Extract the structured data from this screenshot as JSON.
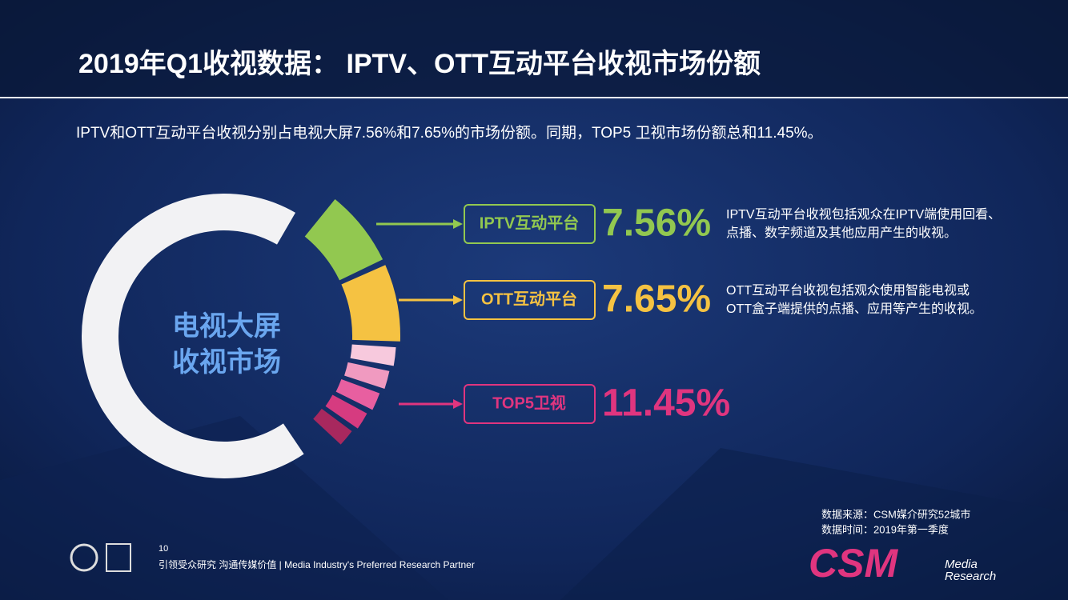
{
  "header": {
    "title": "2019年Q1收视数据： IPTV、OTT互动平台收视市场份额",
    "subtitle": "IPTV和OTT互动平台收视分别占电视大屏7.56%和7.65%的市场份额。同期，TOP5 卫视市场份额总和11.45%。"
  },
  "chart_data": {
    "type": "donut",
    "center_label": [
      "电视大屏",
      "收视市场"
    ],
    "categories": [
      "IPTV互动平台",
      "OTT互动平台",
      "TOP5卫视"
    ],
    "values": [
      7.56,
      7.65,
      11.45
    ],
    "value_labels": [
      "7.56%",
      "7.65%",
      "11.45%"
    ],
    "colors": [
      "#92c850",
      "#f5c242",
      "#e0357f"
    ],
    "annotations": [
      [
        "IPTV互动平台收视包括观众在IPTV端使用回看、",
        "点播、数字频道及其他应用产生的收视。"
      ],
      [
        "OTT互动平台收视包括观众使用智能电视或",
        "OTT盒子端提供的点播、应用等产生的收视。"
      ]
    ]
  },
  "source": [
    "数据来源：CSM媒介研究52城市",
    "数据时间：2019年第一季度"
  ],
  "footer": {
    "page": "10",
    "tagline": "引领受众研究  沟通传媒价值 | Media  Industry's  Preferred  Research  Partner",
    "logo": "CSM",
    "logo_sub": [
      "Media",
      "Research"
    ]
  }
}
